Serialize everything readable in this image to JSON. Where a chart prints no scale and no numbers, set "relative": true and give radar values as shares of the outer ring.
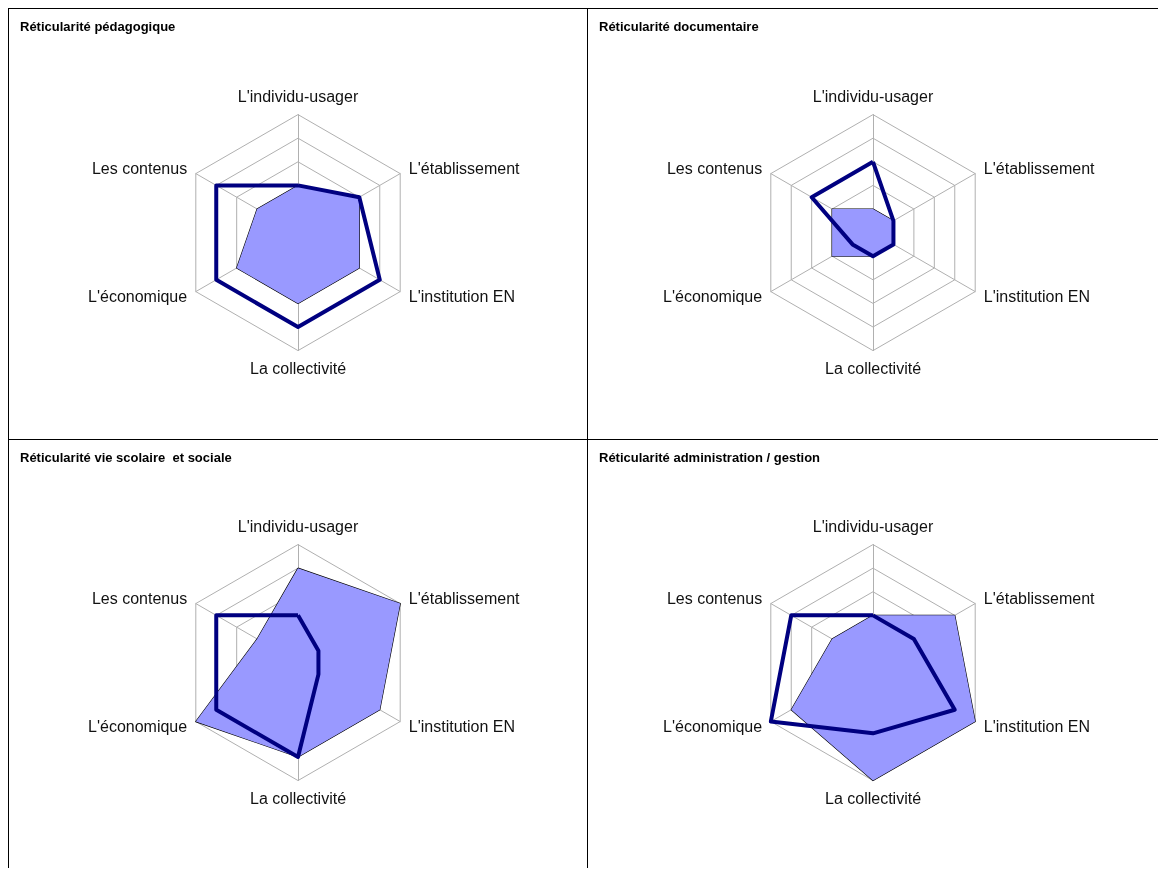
{
  "chart_data": [
    {
      "type": "radar",
      "title": "Réticularité pédagogique",
      "relative": true,
      "categories": [
        "L'individu-usager",
        "L'établissement",
        "L'institution EN",
        "La collectivité",
        "L'économique",
        "Les contenus"
      ],
      "series": [
        {
          "color": "#9999ff",
          "values": [
            0.4,
            0.6,
            0.6,
            0.6,
            0.6,
            0.4
          ]
        },
        {
          "color": "#000080",
          "values": [
            0.4,
            0.6,
            0.8,
            0.8,
            0.8,
            0.8
          ]
        }
      ]
    },
    {
      "type": "radar",
      "title": "Réticularité documentaire",
      "relative": true,
      "categories": [
        "L'individu-usager",
        "L'établissement",
        "L'institution EN",
        "La collectivité",
        "L'économique",
        "Les contenus"
      ],
      "series": [
        {
          "color": "#9999ff",
          "values": [
            0.2,
            0.2,
            0.2,
            0.2,
            0.4,
            0.4
          ]
        },
        {
          "color": "#000080",
          "values": [
            0.6,
            0.2,
            0.2,
            0.2,
            0.2,
            0.6
          ]
        }
      ]
    },
    {
      "type": "radar",
      "title": "Réticularité vie scolaire  et sociale",
      "relative": true,
      "categories": [
        "L'individu-usager",
        "L'établissement",
        "L'institution EN",
        "La collectivité",
        "L'économique",
        "Les contenus"
      ],
      "series": [
        {
          "color": "#9999ff",
          "values": [
            0.8,
            1,
            0.8,
            0.8,
            1,
            0.4
          ]
        },
        {
          "color": "#000080",
          "values": [
            0.4,
            0.2,
            0.2,
            0.8,
            0.8,
            0.8
          ]
        }
      ]
    },
    {
      "type": "radar",
      "title": "Réticularité administration / gestion",
      "relative": true,
      "categories": [
        "L'individu-usager",
        "L'établissement",
        "L'institution EN",
        "La collectivité",
        "L'économique",
        "Les contenus"
      ],
      "series": [
        {
          "color": "#9999ff",
          "values": [
            0.4,
            0.8,
            1,
            1,
            0.8,
            0.4
          ]
        },
        {
          "color": "#000080",
          "values": [
            0.4,
            0.4,
            0.8,
            0.6,
            1,
            0.8
          ]
        }
      ]
    }
  ]
}
